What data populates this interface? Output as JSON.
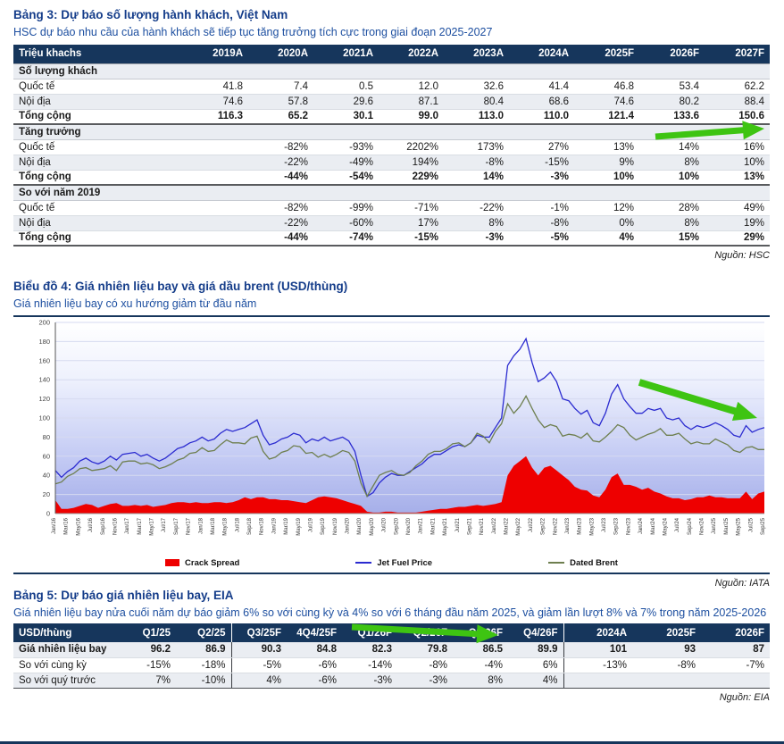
{
  "colors": {
    "navy": "#16365C",
    "title": "#153D8A",
    "sub": "#1D4FA0",
    "alt": "#EAEDF2",
    "arrow": "#3EC412",
    "src": "#222222"
  },
  "table3": {
    "title": "Bảng 3: Dự báo số lượng hành khách, Việt Nam",
    "subtitle": "HSC dự báo nhu cầu của hành khách sẽ tiếp tục tăng trưởng tích cực trong giai đoạn 2025-2027",
    "source": "Nguồn: HSC",
    "unit_header": "Triệu khachs",
    "years": [
      "2019A",
      "2020A",
      "2021A",
      "2022A",
      "2023A",
      "2024A",
      "2025F",
      "2026F",
      "2027F"
    ],
    "sections": [
      {
        "header": "Số lượng khách",
        "rows": [
          {
            "label": "Quốc tế",
            "total": false,
            "values": [
              "41.8",
              "7.4",
              "0.5",
              "12.0",
              "32.6",
              "41.4",
              "46.8",
              "53.4",
              "62.2"
            ]
          },
          {
            "label": "Nội địa",
            "total": false,
            "values": [
              "74.6",
              "57.8",
              "29.6",
              "87.1",
              "80.4",
              "68.6",
              "74.6",
              "80.2",
              "88.4"
            ]
          },
          {
            "label": "Tổng cộng",
            "total": true,
            "values": [
              "116.3",
              "65.2",
              "30.1",
              "99.0",
              "113.0",
              "110.0",
              "121.4",
              "133.6",
              "150.6"
            ]
          }
        ]
      },
      {
        "header": "Tăng trưởng",
        "rows": [
          {
            "label": "Quốc tế",
            "total": false,
            "values": [
              "",
              "-82%",
              "-93%",
              "2202%",
              "173%",
              "27%",
              "13%",
              "14%",
              "16%"
            ]
          },
          {
            "label": "Nội địa",
            "total": false,
            "values": [
              "",
              "-22%",
              "-49%",
              "194%",
              "-8%",
              "-15%",
              "9%",
              "8%",
              "10%"
            ]
          },
          {
            "label": "Tổng cộng",
            "total": true,
            "values": [
              "",
              "-44%",
              "-54%",
              "229%",
              "14%",
              "-3%",
              "10%",
              "10%",
              "13%"
            ]
          }
        ]
      },
      {
        "header": "So với năm 2019",
        "rows": [
          {
            "label": "Quốc tế",
            "total": false,
            "values": [
              "",
              "-82%",
              "-99%",
              "-71%",
              "-22%",
              "-1%",
              "12%",
              "28%",
              "49%"
            ]
          },
          {
            "label": "Nội địa",
            "total": false,
            "values": [
              "",
              "-22%",
              "-60%",
              "17%",
              "8%",
              "-8%",
              "0%",
              "8%",
              "19%"
            ]
          },
          {
            "label": "Tổng cộng",
            "total": true,
            "values": [
              "",
              "-44%",
              "-74%",
              "-15%",
              "-3%",
              "-5%",
              "4%",
              "15%",
              "29%"
            ]
          }
        ]
      }
    ]
  },
  "chart4": {
    "title": "Biểu đồ 4: Giá nhiên liệu bay và giá dầu brent (USD/thùng)",
    "subtitle": "Giá nhiên liệu bay có xu hướng giảm từ đầu năm",
    "source": "Nguồn: IATA"
  },
  "chart_data": {
    "type": "line",
    "title": "Giá nhiên liệu bay và giá dầu brent (USD/thùng)",
    "ylim": [
      0,
      200
    ],
    "ytick_step": 20,
    "months_per_tick": 2,
    "legend_position": "bottom",
    "bg_gradient": [
      "#ffffff",
      "#a6afe9"
    ],
    "x_tick_labels": [
      "Jan/16",
      "Mar/16",
      "May/16",
      "Jul/16",
      "Sep/16",
      "Nov/16",
      "Jan/17",
      "Mar/17",
      "May/17",
      "Jul/17",
      "Sep/17",
      "Nov/17",
      "Jan/18",
      "Mar/18",
      "May/18",
      "Jul/18",
      "Sep/18",
      "Nov/18",
      "Jan/19",
      "Mar/19",
      "May/19",
      "Jul/19",
      "Sep/19",
      "Nov/19",
      "Jan/20",
      "Mar/20",
      "May/20",
      "Jul/20",
      "Sep/20",
      "Nov/20",
      "Jan/21",
      "Mar/21",
      "May/21",
      "Jul/21",
      "Sep/21",
      "Nov/21",
      "Jan/22",
      "Mar/22",
      "May/22",
      "Jul/22",
      "Sep/22",
      "Nov/22",
      "Jan/23",
      "Mar/23",
      "May/23",
      "Jul/23",
      "Sep/23",
      "Nov/23",
      "Jan/24",
      "Mar/24",
      "May/24",
      "Jul/24",
      "Sep/24",
      "Nov/24",
      "Jan/25",
      "Mar/25",
      "May/25",
      "Jul/25",
      "Sep/25"
    ],
    "series": [
      {
        "name": "Crack Spread",
        "type": "area",
        "color": "#EE0000",
        "values": [
          14,
          5,
          5,
          6,
          8,
          10,
          9,
          6,
          8,
          10,
          11,
          8,
          8,
          9,
          8,
          9,
          7,
          8,
          9,
          11,
          12,
          12,
          11,
          12,
          11,
          11,
          12,
          12,
          11,
          12,
          14,
          17,
          15,
          17,
          17,
          15,
          15,
          14,
          14,
          13,
          12,
          11,
          14,
          17,
          18,
          17,
          16,
          14,
          12,
          10,
          8,
          2,
          1,
          1,
          2,
          2,
          1,
          1,
          1,
          1,
          2,
          3,
          4,
          5,
          5,
          6,
          7,
          7,
          8,
          9,
          8,
          9,
          10,
          12,
          40,
          50,
          55,
          60,
          48,
          40,
          48,
          50,
          45,
          40,
          35,
          28,
          25,
          24,
          19,
          17,
          25,
          38,
          42,
          30,
          30,
          28,
          25,
          27,
          23,
          21,
          18,
          16,
          16,
          14,
          15,
          17,
          17,
          19,
          17,
          17,
          16,
          16,
          16,
          23,
          15,
          21,
          23
        ]
      },
      {
        "name": "Jet Fuel Price",
        "type": "line",
        "color": "#2B2BD0",
        "values": [
          45,
          38,
          44,
          48,
          55,
          58,
          54,
          52,
          55,
          60,
          56,
          62,
          63,
          64,
          60,
          62,
          58,
          55,
          58,
          63,
          68,
          70,
          74,
          76,
          80,
          76,
          78,
          84,
          88,
          86,
          88,
          90,
          94,
          98,
          82,
          72,
          74,
          78,
          80,
          84,
          82,
          74,
          78,
          76,
          80,
          76,
          78,
          80,
          76,
          65,
          40,
          18,
          22,
          32,
          38,
          42,
          40,
          40,
          44,
          48,
          52,
          58,
          62,
          62,
          66,
          70,
          72,
          70,
          74,
          82,
          80,
          80,
          90,
          100,
          155,
          165,
          172,
          183,
          158,
          138,
          142,
          148,
          138,
          120,
          118,
          110,
          104,
          108,
          95,
          92,
          105,
          125,
          135,
          120,
          112,
          105,
          105,
          110,
          108,
          110,
          100,
          98,
          100,
          92,
          88,
          92,
          90,
          92,
          95,
          92,
          88,
          82,
          80,
          92,
          85,
          88,
          90
        ]
      },
      {
        "name": "Dated Brent",
        "type": "line",
        "color": "#6E7F4F",
        "values": [
          31,
          33,
          39,
          42,
          47,
          48,
          45,
          46,
          47,
          50,
          45,
          54,
          55,
          55,
          52,
          53,
          51,
          47,
          49,
          52,
          56,
          58,
          63,
          64,
          69,
          65,
          66,
          72,
          77,
          74,
          74,
          73,
          79,
          81,
          65,
          57,
          59,
          64,
          66,
          71,
          70,
          63,
          64,
          59,
          62,
          59,
          62,
          66,
          64,
          55,
          32,
          18,
          29,
          40,
          43,
          45,
          41,
          40,
          43,
          50,
          55,
          62,
          65,
          65,
          68,
          73,
          74,
          70,
          74,
          84,
          81,
          74,
          86,
          94,
          115,
          105,
          112,
          123,
          110,
          98,
          90,
          93,
          91,
          81,
          83,
          82,
          79,
          84,
          76,
          75,
          80,
          86,
          93,
          90,
          82,
          77,
          80,
          83,
          85,
          89,
          82,
          82,
          84,
          78,
          73,
          75,
          73,
          73,
          78,
          75,
          72,
          66,
          64,
          69,
          70,
          67,
          67
        ]
      }
    ]
  },
  "table5": {
    "title": "Bảng 5: Dự báo giá nhiên liệu bay, EIA",
    "subtitle": "Giá nhiên liệu bay nửa cuối năm dự báo giảm 6% so với cùng kỳ và 4% so với 6 tháng đầu năm 2025, và giảm lần lượt 8% và 7% trong năm 2025-2026",
    "source": "Nguồn: EIA",
    "header": [
      "USD/thùng",
      "Q1/25",
      "Q2/25",
      "Q3/25F",
      "4Q4/25F",
      "Q1/26F",
      "Q2/26F",
      "Q3.26F",
      "Q4/26F",
      "2024A",
      "2025F",
      "2026F"
    ],
    "divider_after_cols": [
      2,
      8
    ],
    "rows": [
      {
        "label": "Giá nhiên liệu bay",
        "bold": true,
        "values": [
          "96.2",
          "86.9",
          "90.3",
          "84.8",
          "82.3",
          "79.8",
          "86.5",
          "89.9",
          "101",
          "93",
          "87"
        ]
      },
      {
        "label": "So với cùng kỳ",
        "bold": false,
        "values": [
          "-15%",
          "-18%",
          "-5%",
          "-6%",
          "-14%",
          "-8%",
          "-4%",
          "6%",
          "-13%",
          "-8%",
          "-7%"
        ]
      },
      {
        "label": "So với quý trước",
        "bold": false,
        "values": [
          "7%",
          "-10%",
          "4%",
          "-6%",
          "-3%",
          "-3%",
          "8%",
          "4%",
          "",
          "",
          ""
        ]
      }
    ]
  },
  "annotations": {
    "arrow_color": "#3EC412",
    "arrows": [
      "total-passengers-2027-highlight",
      "fuel-price-downtrend",
      "h2-2025-forecast-highlight"
    ]
  }
}
